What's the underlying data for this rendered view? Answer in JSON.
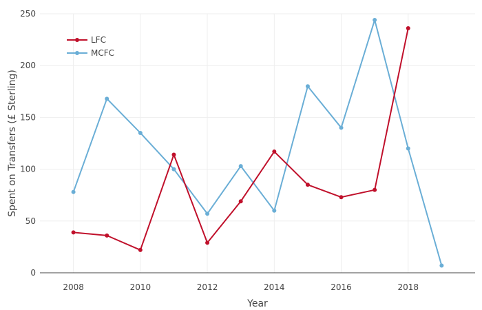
{
  "chart_data": {
    "type": "line",
    "title": "",
    "xlabel": "Year",
    "ylabel": "Spent on Transfers (£ Sterling)",
    "xlim": [
      2007,
      2020
    ],
    "ylim": [
      0,
      250
    ],
    "x_ticks": [
      2008,
      2010,
      2012,
      2014,
      2016,
      2018
    ],
    "y_ticks": [
      0,
      50,
      100,
      150,
      200,
      250
    ],
    "grid": true,
    "legend_position": "top-left",
    "series": [
      {
        "name": "LFC",
        "color": "#c0102b",
        "x": [
          2008,
          2009,
          2010,
          2011,
          2012,
          2013,
          2014,
          2015,
          2016,
          2017,
          2018
        ],
        "y": [
          39,
          36,
          22,
          114,
          29,
          69,
          117,
          85,
          73,
          80,
          236
        ]
      },
      {
        "name": "MCFC",
        "color": "#6aaed6",
        "x": [
          2008,
          2009,
          2010,
          2011,
          2012,
          2013,
          2014,
          2015,
          2016,
          2017,
          2018,
          2019
        ],
        "y": [
          78,
          168,
          135,
          100,
          57,
          103,
          60,
          180,
          140,
          244,
          120,
          7
        ]
      }
    ]
  }
}
